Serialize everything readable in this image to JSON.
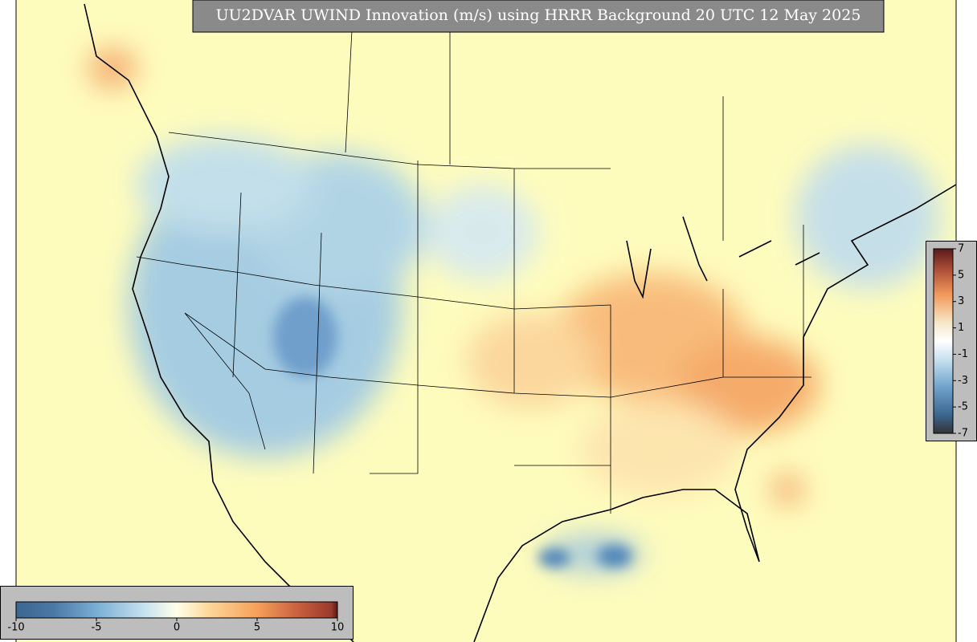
{
  "title": "UU2DVAR UWIND Innovation (m/s) using HRRR Background 20 UTC 12 May 2025",
  "colorbars": [
    {
      "orientation": "horizontal",
      "ticks": [
        -10,
        -5,
        0,
        5,
        10
      ]
    },
    {
      "orientation": "vertical",
      "ticks": [
        7,
        5,
        3,
        1,
        -1,
        -3,
        -5,
        -7
      ]
    }
  ]
}
